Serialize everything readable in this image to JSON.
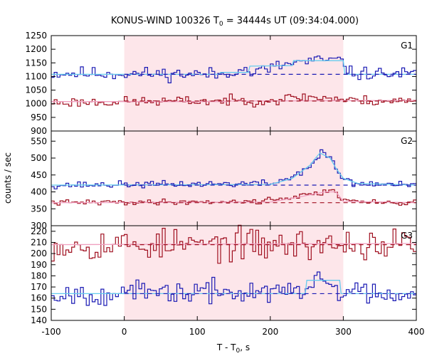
{
  "chart_data": {
    "type": "line",
    "title": "KONUS-WIND 100326 T",
    "title_sub": "0",
    "title_rest": " = 34444s UT (09:34:04.000)",
    "xlabel": "T - T",
    "xlabel_sub": "0",
    "xlabel_rest": ", s",
    "ylabel": "counts / sec",
    "xlim": [
      -100,
      400
    ],
    "xticks": [
      "-100",
      "0",
      "100",
      "200",
      "300",
      "400"
    ],
    "highlight_interval": [
      0,
      300
    ],
    "colors": {
      "blue_raw": "#1a1ab4",
      "blue_fit": "#66ccee",
      "red_raw": "#a01020",
      "red_fit": "#f0a0c0",
      "highlight": "#fde6ea"
    },
    "panels": [
      {
        "name": "G1",
        "ylim": [
          900,
          1250
        ],
        "yticks": [
          "900",
          "950",
          "1000",
          "1050",
          "1100",
          "1150",
          "1200",
          "1250"
        ],
        "series": [
          {
            "color": "blue",
            "background": 1108,
            "seed": 11,
            "noise": 12,
            "anchors": [
              [
                -100,
                1112
              ],
              [
                140,
                1108
              ],
              [
                155,
                1135
              ],
              [
                170,
                1112
              ],
              [
                230,
                1150
              ],
              [
                275,
                1160
              ],
              [
                300,
                1155
              ],
              [
                305,
                1112
              ],
              [
                400,
                1108
              ]
            ],
            "fit": [
              [
                -100,
                1108
              ],
              [
                130,
                1108
              ],
              [
                132,
                1115
              ],
              [
                170,
                1115
              ],
              [
                172,
                1138
              ],
              [
                230,
                1140
              ],
              [
                232,
                1158
              ],
              [
                300,
                1158
              ],
              [
                302,
                1108
              ],
              [
                400,
                1108
              ]
            ]
          },
          {
            "color": "red",
            "background": 1010,
            "seed": 23,
            "noise": 9,
            "anchors": [
              [
                -100,
                1005
              ],
              [
                200,
                1012
              ],
              [
                240,
                1025
              ],
              [
                290,
                1020
              ],
              [
                300,
                1012
              ],
              [
                400,
                1010
              ]
            ],
            "fit": [
              [
                -100,
                1008
              ],
              [
                140,
                1008
              ],
              [
                142,
                1010
              ],
              [
                400,
                1012
              ]
            ]
          }
        ]
      },
      {
        "name": "G2",
        "ylim": [
          300,
          580
        ],
        "yticks": [
          "300",
          "350",
          "400",
          "450",
          "500",
          "550"
        ],
        "series": [
          {
            "color": "blue",
            "background": 420,
            "seed": 37,
            "noise": 5,
            "anchors": [
              [
                -100,
                420
              ],
              [
                200,
                425
              ],
              [
                230,
                445
              ],
              [
                260,
                490
              ],
              [
                270,
                520
              ],
              [
                280,
                500
              ],
              [
                295,
                445
              ],
              [
                310,
                425
              ],
              [
                400,
                420
              ]
            ],
            "fit": [
              [
                -100,
                420
              ],
              [
                200,
                422
              ],
              [
                230,
                440
              ],
              [
                255,
                480
              ],
              [
                262,
                500
              ],
              [
                268,
                515
              ],
              [
                282,
                500
              ],
              [
                290,
                470
              ],
              [
                300,
                440
              ],
              [
                320,
                425
              ],
              [
                400,
                420
              ]
            ]
          },
          {
            "color": "red",
            "background": 368,
            "seed": 41,
            "noise": 4,
            "anchors": [
              [
                -100,
                368
              ],
              [
                180,
                372
              ],
              [
                230,
                385
              ],
              [
                270,
                398
              ],
              [
                285,
                410
              ],
              [
                292,
                385
              ],
              [
                310,
                370
              ],
              [
                400,
                368
              ]
            ],
            "fit": [
              [
                -100,
                368
              ],
              [
                200,
                370
              ],
              [
                240,
                385
              ],
              [
                275,
                400
              ],
              [
                290,
                400
              ],
              [
                300,
                372
              ],
              [
                400,
                368
              ]
            ]
          }
        ]
      },
      {
        "name": "G3",
        "ylim": [
          140,
          225
        ],
        "yticks": [
          "140",
          "150",
          "160",
          "170",
          "180",
          "190",
          "200",
          "210",
          "220"
        ],
        "series": [
          {
            "color": "red",
            "background": 208,
            "seed": 53,
            "noise": 7,
            "anchors": [
              [
                -100,
                208
              ],
              [
                400,
                208
              ]
            ],
            "fit": [
              [
                -100,
                208
              ],
              [
                400,
                209
              ]
            ]
          },
          {
            "color": "blue",
            "background": 164,
            "seed": 67,
            "noise": 5,
            "anchors": [
              [
                -100,
                164
              ],
              [
                250,
                166
              ],
              [
                265,
                180
              ],
              [
                275,
                175
              ],
              [
                295,
                166
              ],
              [
                400,
                164
              ]
            ],
            "fit": [
              [
                -100,
                164
              ],
              [
                248,
                164
              ],
              [
                250,
                176
              ],
              [
                295,
                176
              ],
              [
                297,
                164
              ],
              [
                400,
                164
              ]
            ]
          }
        ]
      }
    ]
  }
}
